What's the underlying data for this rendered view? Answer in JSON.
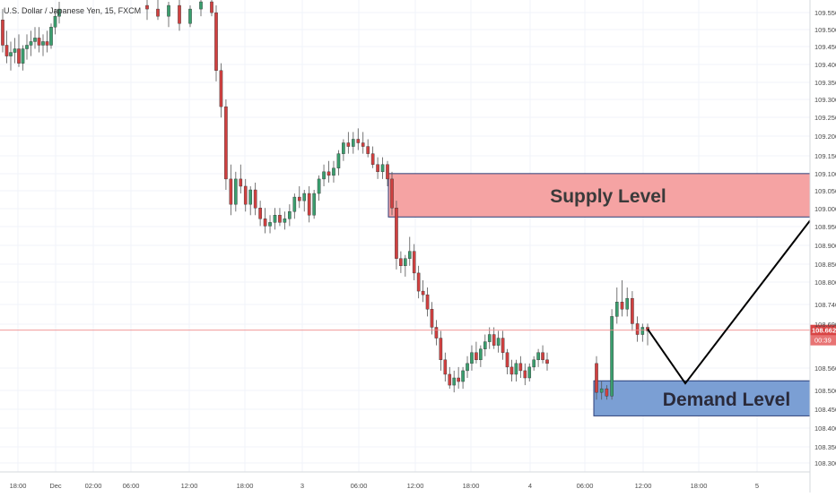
{
  "chart_data": {
    "type": "candlestick",
    "title": "U.S. Dollar / Japanese Yen, 15, FXCM",
    "y_ticks": [
      "109.550",
      "109.500",
      "109.450",
      "109.400",
      "109.350",
      "109.300",
      "109.250",
      "109.200",
      "109.150",
      "109.100",
      "109.050",
      "109.000",
      "108.950",
      "108.900",
      "108.850",
      "108.800",
      "108.740",
      "108.690",
      "108.560",
      "108.500",
      "108.450",
      "108.400",
      "108.350",
      "108.300"
    ],
    "x_ticks": [
      "18:00",
      "Dec",
      "02:00",
      "06:00",
      "12:00",
      "18:00",
      "3",
      "06:00",
      "12:00",
      "18:00",
      "4",
      "06:00",
      "12:00",
      "18:00",
      "5"
    ],
    "price_line": 108.662,
    "price_label": "108.662",
    "countdown_label": "00:39",
    "ylim": [
      108.27,
      109.575
    ],
    "supply_zone": {
      "label": "Supply Level",
      "high": 109.095,
      "low": 108.975
    },
    "demand_zone": {
      "label": "Demand Level",
      "high": 108.522,
      "low": 108.425
    },
    "projection": [
      {
        "price": 108.665
      },
      {
        "price": 108.515
      },
      {
        "price": 108.965
      }
    ],
    "series": [
      {
        "values": [
          [
            109.52,
            109.55,
            109.43,
            109.45
          ],
          [
            109.45,
            109.49,
            109.4,
            109.42
          ],
          [
            109.42,
            109.46,
            109.38,
            109.43
          ],
          [
            109.43,
            109.47,
            109.4,
            109.44
          ],
          [
            109.44,
            109.48,
            109.39,
            109.4
          ],
          [
            109.4,
            109.45,
            109.38,
            109.44
          ],
          [
            109.44,
            109.48,
            109.41,
            109.45
          ],
          [
            109.45,
            109.49,
            109.42,
            109.46
          ],
          [
            109.46,
            109.5,
            109.44,
            109.47
          ],
          [
            109.47,
            109.5,
            109.43,
            109.45
          ],
          [
            109.45,
            109.48,
            109.42,
            109.46
          ],
          [
            109.46,
            109.49,
            109.43,
            109.45
          ],
          [
            109.45,
            109.51,
            109.44,
            109.5
          ],
          [
            109.5,
            109.55,
            109.48,
            109.53
          ],
          [
            109.53,
            109.57,
            109.51,
            109.55
          ]
        ]
      },
      {
        "values": [
          [
            109.56,
            109.59,
            109.52,
            109.55
          ],
          [
            109.55,
            109.58,
            109.52,
            109.53
          ],
          [
            109.53,
            109.57,
            109.5,
            109.56
          ],
          [
            109.56,
            109.58,
            109.49,
            109.51
          ],
          [
            109.51,
            109.56,
            109.5,
            109.55
          ],
          [
            109.55,
            109.59,
            109.53,
            109.57
          ],
          [
            109.57,
            109.6,
            109.53,
            109.54
          ]
        ]
      },
      {
        "values": [
          [
            109.54,
            109.56,
            109.35,
            109.38
          ],
          [
            109.38,
            109.4,
            109.25,
            109.28
          ],
          [
            109.28,
            109.3,
            109.05,
            109.08
          ],
          [
            109.08,
            109.12,
            108.98,
            109.01
          ],
          [
            109.01,
            109.1,
            108.99,
            109.08
          ],
          [
            109.08,
            109.12,
            109.04,
            109.06
          ],
          [
            109.06,
            109.08,
            108.99,
            109.01
          ],
          [
            109.01,
            109.06,
            108.98,
            109.05
          ],
          [
            109.05,
            109.07,
            108.98,
            109.0
          ],
          [
            109.0,
            109.02,
            108.95,
            108.97
          ],
          [
            108.97,
            109.0,
            108.93,
            108.95
          ],
          [
            108.95,
            108.98,
            108.93,
            108.96
          ],
          [
            108.96,
            109.0,
            108.94,
            108.98
          ],
          [
            108.98,
            109.0,
            108.95,
            108.96
          ],
          [
            108.96,
            108.99,
            108.94,
            108.97
          ],
          [
            108.97,
            109.01,
            108.95,
            108.99
          ],
          [
            108.99,
            109.04,
            108.97,
            109.03
          ],
          [
            109.03,
            109.06,
            109.0,
            109.02
          ],
          [
            109.02,
            109.05,
            108.99,
            109.04
          ],
          [
            109.04,
            109.06,
            108.96,
            108.98
          ],
          [
            108.98,
            109.05,
            108.97,
            109.04
          ],
          [
            109.04,
            109.09,
            109.02,
            109.08
          ],
          [
            109.08,
            109.12,
            109.06,
            109.1
          ],
          [
            109.1,
            109.13,
            109.07,
            109.09
          ],
          [
            109.09,
            109.13,
            109.07,
            109.11
          ],
          [
            109.11,
            109.16,
            109.09,
            109.15
          ],
          [
            109.15,
            109.19,
            109.13,
            109.18
          ],
          [
            109.18,
            109.21,
            109.15,
            109.17
          ],
          [
            109.17,
            109.21,
            109.15,
            109.19
          ],
          [
            109.19,
            109.22,
            109.16,
            109.18
          ],
          [
            109.18,
            109.21,
            109.15,
            109.17
          ],
          [
            109.17,
            109.19,
            109.14,
            109.15
          ],
          [
            109.15,
            109.17,
            109.11,
            109.12
          ],
          [
            109.12,
            109.14,
            109.08,
            109.1
          ],
          [
            109.1,
            109.14,
            109.08,
            109.12
          ],
          [
            109.12,
            109.13,
            109.06,
            109.08
          ]
        ]
      },
      {
        "values": [
          [
            109.08,
            109.1,
            108.98,
            109.0
          ],
          [
            109.0,
            109.02,
            108.83,
            108.86
          ],
          [
            108.86,
            108.88,
            108.82,
            108.84
          ],
          [
            108.84,
            108.87,
            108.81,
            108.86
          ],
          [
            108.86,
            108.92,
            108.84,
            108.88
          ],
          [
            108.88,
            108.9,
            108.8,
            108.82
          ],
          [
            108.82,
            108.84,
            108.75,
            108.77
          ],
          [
            108.77,
            108.8,
            108.74,
            108.76
          ],
          [
            108.76,
            108.78,
            108.7,
            108.72
          ],
          [
            108.72,
            108.74,
            108.65,
            108.67
          ],
          [
            108.67,
            108.69,
            108.62,
            108.64
          ],
          [
            108.64,
            108.66,
            108.55,
            108.58
          ],
          [
            108.58,
            108.6,
            108.52,
            108.54
          ],
          [
            108.54,
            108.56,
            108.5,
            108.51
          ],
          [
            108.51,
            108.55,
            108.49,
            108.53
          ],
          [
            108.53,
            108.56,
            108.5,
            108.52
          ],
          [
            108.52,
            108.56,
            108.5,
            108.55
          ],
          [
            108.55,
            108.59,
            108.53,
            108.57
          ],
          [
            108.57,
            108.62,
            108.55,
            108.6
          ],
          [
            108.6,
            108.63,
            108.57,
            108.58
          ],
          [
            108.58,
            108.62,
            108.56,
            108.61
          ],
          [
            108.61,
            108.65,
            108.59,
            108.63
          ],
          [
            108.63,
            108.67,
            108.61,
            108.65
          ],
          [
            108.65,
            108.67,
            108.61,
            108.62
          ],
          [
            108.62,
            108.66,
            108.6,
            108.64
          ],
          [
            108.64,
            108.66,
            108.58,
            108.6
          ],
          [
            108.6,
            108.61,
            108.54,
            108.56
          ],
          [
            108.56,
            108.58,
            108.52,
            108.54
          ],
          [
            108.54,
            108.58,
            108.52,
            108.57
          ],
          [
            108.57,
            108.59,
            108.53,
            108.55
          ],
          [
            108.55,
            108.57,
            108.51,
            108.53
          ],
          [
            108.53,
            108.57,
            108.52,
            108.56
          ],
          [
            108.56,
            108.59,
            108.55,
            108.58
          ],
          [
            108.58,
            108.61,
            108.56,
            108.6
          ],
          [
            108.6,
            108.62,
            108.57,
            108.58
          ],
          [
            108.58,
            108.6,
            108.55,
            108.57
          ]
        ]
      },
      {
        "values": [
          [
            108.57,
            108.59,
            108.47,
            108.49
          ],
          [
            108.49,
            108.52,
            108.47,
            108.5
          ],
          [
            108.5,
            108.51,
            108.47,
            108.48
          ],
          [
            108.48,
            108.72,
            108.47,
            108.7
          ],
          [
            108.7,
            108.78,
            108.68,
            108.74
          ],
          [
            108.74,
            108.8,
            108.7,
            108.72
          ],
          [
            108.72,
            108.78,
            108.7,
            108.75
          ],
          [
            108.75,
            108.77,
            108.66,
            108.68
          ],
          [
            108.68,
            108.7,
            108.63,
            108.65
          ],
          [
            108.65,
            108.68,
            108.63,
            108.67
          ],
          [
            108.67,
            108.68,
            108.62,
            108.66
          ]
        ]
      }
    ]
  }
}
